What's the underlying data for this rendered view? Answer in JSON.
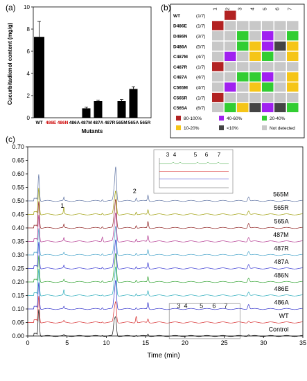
{
  "panel_labels": {
    "a": "(a)",
    "b": "(b)",
    "c": "(c)"
  },
  "colors": {
    "c80": "#b22222",
    "c40": "#a020f0",
    "c20": "#32cd32",
    "c10": "#f5c518",
    "clt10": "#444444",
    "cnd": "#c8c8c8"
  },
  "chart_data": [
    {
      "type": "bar",
      "ylabel": "Cucurbitadienol content (mg/g)",
      "xlabel": "Mutants",
      "ylim": [
        0,
        10
      ],
      "yticks": [
        "0",
        "2",
        "4",
        "6",
        "8",
        "10"
      ],
      "categories": [
        "WT",
        "486E",
        "486N",
        "486A",
        "487M",
        "487A",
        "487R",
        "565M",
        "565A",
        "565R"
      ],
      "values": [
        7.3,
        0,
        0,
        0,
        0.85,
        1.5,
        0,
        1.5,
        2.6,
        0
      ],
      "errors": [
        1.4,
        0,
        0,
        0,
        0.1,
        0.1,
        0,
        0.15,
        0.2,
        0
      ],
      "label_colors": [
        "#000000",
        "#cc0000",
        "#cc0000",
        "#000000",
        "#000000",
        "#000000",
        "#000000",
        "#000000",
        "#000000",
        "#000000"
      ]
    },
    {
      "type": "heatmap",
      "columns": [
        "1",
        "2",
        "3",
        "4",
        "5",
        "6",
        "7"
      ],
      "rows": [
        {
          "name": "WT",
          "count": "(1/7)",
          "cells": [
            "none",
            "c80",
            "none",
            "none",
            "none",
            "none",
            "none"
          ]
        },
        {
          "name": "D486E",
          "count": "(1/7)",
          "cells": [
            "c80",
            "cnd",
            "cnd",
            "cnd",
            "cnd",
            "cnd",
            "cnd"
          ]
        },
        {
          "name": "D486N",
          "count": "(3/7)",
          "cells": [
            "cnd",
            "cnd",
            "c20",
            "cnd",
            "c40",
            "cnd",
            "c20"
          ]
        },
        {
          "name": "D486A",
          "count": "(5/7)",
          "cells": [
            "cnd",
            "cnd",
            "c20",
            "c10",
            "c40",
            "clt10",
            "c10"
          ]
        },
        {
          "name": "C487M",
          "count": "(4/7)",
          "cells": [
            "cnd",
            "c40",
            "cnd",
            "c10",
            "c20",
            "cnd",
            "c10"
          ]
        },
        {
          "name": "C487R",
          "count": "(1/7)",
          "cells": [
            "c80",
            "cnd",
            "cnd",
            "cnd",
            "cnd",
            "cnd",
            "cnd"
          ]
        },
        {
          "name": "C487A",
          "count": "(4/7)",
          "cells": [
            "cnd",
            "cnd",
            "c20",
            "c20",
            "c40",
            "cnd",
            "c10"
          ]
        },
        {
          "name": "C565M",
          "count": "(4/7)",
          "cells": [
            "cnd",
            "c40",
            "cnd",
            "c10",
            "c20",
            "cnd",
            "c10"
          ]
        },
        {
          "name": "C565R",
          "count": "(1/7)",
          "cells": [
            "c80",
            "cnd",
            "cnd",
            "cnd",
            "cnd",
            "cnd",
            "cnd"
          ]
        },
        {
          "name": "C565A",
          "count": "(6/7)",
          "cells": [
            "cnd",
            "c20",
            "c10",
            "clt10",
            "c40",
            "clt10",
            "c20"
          ]
        }
      ],
      "legend": [
        {
          "key": "c80",
          "label": "80-100%"
        },
        {
          "key": "c40",
          "label": "40-60%"
        },
        {
          "key": "c20",
          "label": "20-40%"
        },
        {
          "key": "c10",
          "label": "10-20%"
        },
        {
          "key": "clt10",
          "label": "<10%"
        },
        {
          "key": "cnd",
          "label": "Not detected"
        }
      ]
    },
    {
      "type": "line",
      "xlabel": "Time (min)",
      "xlim": [
        0,
        35
      ],
      "ylim": [
        0,
        0.7
      ],
      "xticks": [
        "0",
        "5",
        "10",
        "15",
        "20",
        "25",
        "30",
        "35"
      ],
      "yticks": [
        "0.00",
        "0.05",
        "0.10",
        "0.15",
        "0.20",
        "0.25",
        "0.30",
        "0.35",
        "0.40",
        "0.45",
        "0.50",
        "0.55",
        "0.60",
        "0.65",
        "0.70"
      ],
      "peak_times": [
        1.4,
        4.6,
        9.5,
        11.0,
        11.2,
        13.8,
        15.3,
        28.1
      ],
      "series": [
        {
          "name": "Control",
          "offset": 0.0,
          "color": "#111111",
          "heights": [
            0.1,
            0.004,
            0.004,
            0.05,
            0.06,
            0.004,
            0.008,
            0.006
          ]
        },
        {
          "name": "WT",
          "offset": 0.05,
          "color": "#d62728",
          "heights": [
            0.1,
            0.006,
            0.004,
            0.04,
            0.07,
            0.025,
            0.014,
            0.006
          ]
        },
        {
          "name": "486A",
          "offset": 0.1,
          "color": "#2828c8",
          "heights": [
            0.1,
            0.008,
            0.006,
            0.04,
            0.1,
            0.006,
            0.025,
            0.018
          ]
        },
        {
          "name": "486E",
          "offset": 0.15,
          "color": "#20a8b8",
          "heights": [
            0.1,
            0.02,
            0.004,
            0.04,
            0.1,
            0.008,
            0.018,
            0.014
          ]
        },
        {
          "name": "486N",
          "offset": 0.2,
          "color": "#2ca02c",
          "heights": [
            0.1,
            0.008,
            0.006,
            0.04,
            0.1,
            0.008,
            0.02,
            0.016
          ]
        },
        {
          "name": "487A",
          "offset": 0.25,
          "color": "#3030d0",
          "heights": [
            0.1,
            0.01,
            0.006,
            0.04,
            0.1,
            0.008,
            0.022,
            0.016
          ]
        },
        {
          "name": "487R",
          "offset": 0.3,
          "color": "#40a0c8",
          "heights": [
            0.1,
            0.008,
            0.006,
            0.04,
            0.1,
            0.008,
            0.02,
            0.014
          ]
        },
        {
          "name": "487M",
          "offset": 0.35,
          "color": "#b0308c",
          "heights": [
            0.1,
            0.012,
            0.018,
            0.04,
            0.1,
            0.01,
            0.022,
            0.016
          ]
        },
        {
          "name": "565A",
          "offset": 0.4,
          "color": "#8b1a1a",
          "heights": [
            0.1,
            0.012,
            0.006,
            0.04,
            0.1,
            0.01,
            0.025,
            0.018
          ]
        },
        {
          "name": "565R",
          "offset": 0.45,
          "color": "#9a9a00",
          "heights": [
            0.1,
            0.025,
            0.006,
            0.04,
            0.08,
            0.01,
            0.018,
            0.014
          ]
        },
        {
          "name": "565M",
          "offset": 0.5,
          "color": "#5a6fa0",
          "heights": [
            0.1,
            0.012,
            0.006,
            0.04,
            0.12,
            0.012,
            0.022,
            0.016
          ]
        }
      ],
      "annotations": [
        {
          "text": "1",
          "x": 4.4,
          "y": 0.475
        },
        {
          "text": "2",
          "x": 13.6,
          "y": 0.528
        },
        {
          "text": "3",
          "x": 19.2,
          "y": 0.104
        },
        {
          "text": "4",
          "x": 20.1,
          "y": 0.104
        },
        {
          "text": "5",
          "x": 22.1,
          "y": 0.104
        },
        {
          "text": "6",
          "x": 23.7,
          "y": 0.104
        },
        {
          "text": "7",
          "x": 25.2,
          "y": 0.104
        }
      ],
      "inset_labels": [
        "3",
        "4",
        "5",
        "6",
        "7"
      ]
    }
  ]
}
